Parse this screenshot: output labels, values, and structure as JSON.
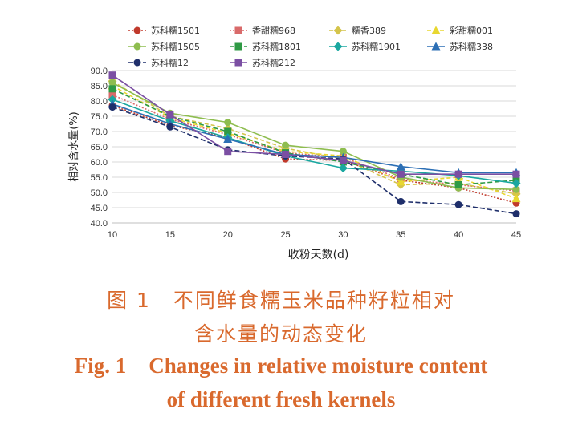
{
  "chart_data": {
    "type": "line",
    "ylabel": "相对含水量(%)",
    "xlabel": "收粉天数(d)",
    "x": [
      10,
      15,
      20,
      25,
      30,
      35,
      40,
      45
    ],
    "xticks": [
      "10",
      "15",
      "20",
      "25",
      "30",
      "35",
      "40",
      "45"
    ],
    "ylim": [
      40.0,
      90.0
    ],
    "yticks": [
      "40.0",
      "45.0",
      "50.0",
      "55.0",
      "60.0",
      "65.0",
      "70.0",
      "75.0",
      "80.0",
      "85.0",
      "90.0"
    ],
    "grid": true,
    "legend_position": "top",
    "series": [
      {
        "name": "苏科糯1501",
        "color": "#c0392b",
        "dash": "2,2",
        "marker": "circle",
        "values": [
          78.5,
          72.0,
          68.0,
          61.0,
          60.5,
          54.0,
          51.5,
          46.5
        ]
      },
      {
        "name": "香甜糯968",
        "color": "#d96a6a",
        "dash": "2,2",
        "marker": "square",
        "values": [
          82.0,
          74.0,
          69.0,
          63.0,
          61.5,
          54.5,
          52.5,
          50.5
        ]
      },
      {
        "name": "糯香389",
        "color": "#d4c44a",
        "dash": "5,3",
        "marker": "diamond",
        "values": [
          86.5,
          75.0,
          71.0,
          64.5,
          61.0,
          52.5,
          53.0,
          49.5
        ]
      },
      {
        "name": "彩甜糯001",
        "color": "#e8d730",
        "dash": "5,3",
        "marker": "triangle",
        "values": [
          85.0,
          74.5,
          69.5,
          63.5,
          62.0,
          53.5,
          55.0,
          48.0
        ]
      },
      {
        "name": "苏科糯1505",
        "color": "#8ebd4f",
        "dash": "",
        "marker": "circle",
        "values": [
          86.0,
          76.0,
          73.0,
          65.5,
          63.5,
          55.0,
          51.5,
          51.0
        ]
      },
      {
        "name": "苏科糯1801",
        "color": "#2f9a45",
        "dash": "6,3",
        "marker": "square",
        "values": [
          84.0,
          75.0,
          70.0,
          63.0,
          60.0,
          56.0,
          52.5,
          54.0
        ]
      },
      {
        "name": "苏科糯1901",
        "color": "#1aa7a0",
        "dash": "",
        "marker": "diamond",
        "values": [
          80.5,
          73.5,
          68.0,
          62.0,
          58.0,
          57.0,
          55.5,
          53.0
        ]
      },
      {
        "name": "苏科糯338",
        "color": "#2c6fb5",
        "dash": "",
        "marker": "triangle",
        "values": [
          79.0,
          72.5,
          67.5,
          62.5,
          61.5,
          58.5,
          56.5,
          56.5
        ]
      },
      {
        "name": "苏科糯12",
        "color": "#1f2f6b",
        "dash": "6,3",
        "marker": "circle",
        "values": [
          78.0,
          71.5,
          64.0,
          62.0,
          61.0,
          47.0,
          46.0,
          43.0
        ]
      },
      {
        "name": "苏科糯212",
        "color": "#7b4fa3",
        "dash": "",
        "marker": "square",
        "values": [
          88.5,
          75.5,
          63.5,
          62.5,
          60.5,
          56.0,
          56.0,
          56.0
        ]
      }
    ]
  },
  "caption": {
    "cn_label": "图 1",
    "cn_line1": "不同鲜食糯玉米品种籽粒相对",
    "cn_line2": "含水量的动态变化",
    "en_label": "Fig. 1",
    "en_line1": "Changes in relative moisture content",
    "en_line2": "of different fresh kernels"
  }
}
